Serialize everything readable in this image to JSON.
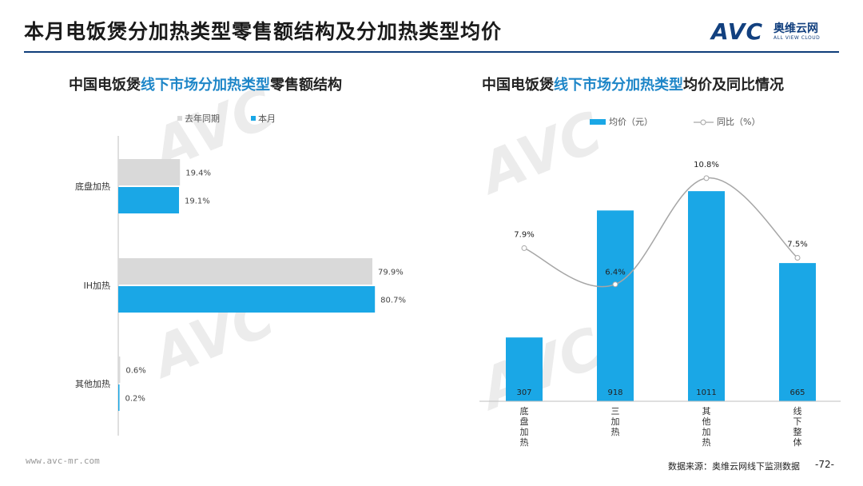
{
  "header": {
    "title": "本月电饭煲分加热类型零售额结构及分加热类型均价",
    "logo_avc": "AVC",
    "logo_cn": "奥维云网",
    "logo_en": "ALL VIEW CLOUD"
  },
  "left_chart": {
    "title_pre": "中国电饭煲",
    "title_hl": "线下市场分加热类型",
    "title_post": "零售额结构"
  },
  "right_chart": {
    "title_pre": "中国电饭煲",
    "title_hl": "线下市场分加热类型",
    "title_post": "均价及同比情况"
  },
  "chart_data": [
    {
      "type": "bar",
      "orientation": "horizontal",
      "categories": [
        "底盘加热",
        "IH加热",
        "其他加热"
      ],
      "series": [
        {
          "name": "去年同期",
          "values": [
            19.4,
            79.9,
            0.6
          ],
          "color": "#d9d9d9",
          "labels": [
            "19.4%",
            "79.9%",
            "0.6%"
          ]
        },
        {
          "name": "本月",
          "values": [
            19.1,
            80.7,
            0.2
          ],
          "color": "#1aa7e6",
          "labels": [
            "19.1%",
            "80.7%",
            "0.2%"
          ]
        }
      ],
      "legend": "top-left",
      "xlim": [
        0,
        100
      ]
    },
    {
      "type": "bar",
      "categories": [
        "底盘加热",
        "三加热",
        "其他加热",
        "线下整体"
      ],
      "series": [
        {
          "name": "均价（元）",
          "type": "bar",
          "values": [
            307,
            918,
            1011,
            665
          ],
          "color": "#1aa7e6",
          "labels": [
            "307",
            "918",
            "1011",
            "665"
          ]
        },
        {
          "name": "同比（%）",
          "type": "line",
          "values": [
            7.9,
            6.4,
            10.8,
            7.5
          ],
          "color": "#a6a6a6",
          "labels": [
            "7.9%",
            "6.4%",
            "10.8%",
            "7.5%"
          ]
        }
      ],
      "legend": "top",
      "ylim": [
        0,
        1200
      ],
      "y2lim": [
        0,
        12.5
      ]
    }
  ],
  "footer": {
    "url": "www.avc-mr.com",
    "source": "数据来源：奥维云网线下监测数据",
    "page": "-72-"
  }
}
